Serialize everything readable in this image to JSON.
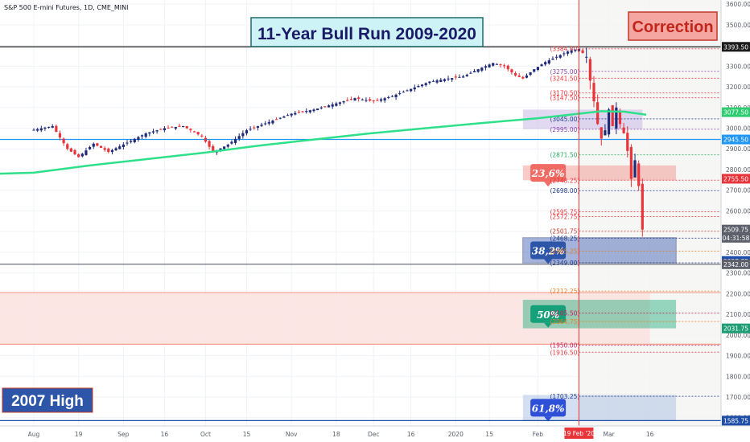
{
  "chart_data": {
    "type": "candlestick",
    "source_label": "S&P 500 E-mini Futures, 1D, CME_MINI",
    "title": "11-Year Bull Run 2009-2020",
    "correction_label": "Correction",
    "high_2007_label": "2007 High",
    "crosshair_date_label": "19 Feb '20",
    "ylim": [
      1560,
      3620
    ],
    "y_ticks": [
      1600,
      1700,
      1800,
      1900,
      2000,
      2100,
      2200,
      2300,
      2400,
      2500,
      2600,
      2700,
      2800,
      2900,
      3000,
      3100,
      3200,
      3300,
      3400,
      3500,
      3600
    ],
    "y_tick_labels": [
      "1600.00",
      "1700.00",
      "1800.00",
      "1900.00",
      "2000.00",
      "2100.00",
      "2200.00",
      "2300.00",
      "2400.00",
      "2500.00",
      "2600.00",
      "2700.00",
      "2800.00",
      "2900.00",
      "3000.00",
      "3100.00",
      "3200.00",
      "3300.00",
      "3400.00",
      "3500.00",
      "3600.00"
    ],
    "x_ticks": [
      {
        "label": "Aug",
        "day": 0
      },
      {
        "label": "19",
        "day": 12
      },
      {
        "label": "Sep",
        "day": 24
      },
      {
        "label": "16",
        "day": 35
      },
      {
        "label": "Oct",
        "day": 46
      },
      {
        "label": "15",
        "day": 57
      },
      {
        "label": "Nov",
        "day": 69
      },
      {
        "label": "18",
        "day": 81
      },
      {
        "label": "Dec",
        "day": 91
      },
      {
        "label": "16",
        "day": 101
      },
      {
        "label": "2020",
        "day": 113
      },
      {
        "label": "15",
        "day": 122
      },
      {
        "label": "Feb",
        "day": 135
      },
      {
        "label": "19 Feb '20",
        "day": 146
      },
      {
        "label": "Mar",
        "day": 154
      },
      {
        "label": "16",
        "day": 165
      }
    ],
    "price_tags": [
      {
        "label": "3393.50",
        "value": 3393.5,
        "color": "#1a1a1a"
      },
      {
        "label": "3077.50",
        "value": 3077.5,
        "color": "#2ecc71"
      },
      {
        "label": "2945.50",
        "value": 2945.5,
        "color": "#2196f3"
      },
      {
        "label": "2755.50",
        "value": 2755.5,
        "color": "#e8353b"
      },
      {
        "label": "2509.75",
        "value": 2509.75,
        "color": "#5d606b"
      },
      {
        "label": "04:31:58",
        "value": 2470,
        "color": "#5d606b"
      },
      {
        "label": "2357.75",
        "value": 2357.75,
        "color": "#1e4ea8"
      },
      {
        "label": "2342.00",
        "value": 2342,
        "color": "#5d606b"
      },
      {
        "label": "2031.75",
        "value": 2031.75,
        "color": "#1f9d75"
      },
      {
        "label": "1585.75",
        "value": 1585.75,
        "color": "#1e4ea8"
      }
    ],
    "level_lines": [
      {
        "value": 3393.5,
        "color": "#1a1a1a",
        "style": "solid"
      },
      {
        "value": 2945.5,
        "color": "#2196f3",
        "style": "solid"
      },
      {
        "value": 2342,
        "color": "#5d606b",
        "style": "solid"
      },
      {
        "value": 1585.75,
        "color": "#1e4ea8",
        "style": "solid"
      },
      {
        "value": 2205,
        "color": "#f4a090",
        "style": "solid"
      },
      {
        "value": 1955,
        "color": "#f4a090",
        "style": "solid"
      }
    ],
    "fib_labels": [
      {
        "label": "(3384.00)",
        "value": 3384,
        "color": "#e8353b"
      },
      {
        "label": "(3275.00)",
        "value": 3275,
        "color": "#8e44ad"
      },
      {
        "label": "(3241.50)",
        "value": 3241.5,
        "color": "#e8353b"
      },
      {
        "label": "(3170.50)",
        "value": 3170.5,
        "color": "#e8353b"
      },
      {
        "label": "(3147.50)",
        "value": 3147.5,
        "color": "#e8353b"
      },
      {
        "label": "(3045.00)",
        "value": 3045,
        "color": "#1e3a8a"
      },
      {
        "label": "(2995.00)",
        "value": 2995,
        "color": "#8e44ad"
      },
      {
        "label": "(2871.50)",
        "value": 2871.5,
        "color": "#27ae60"
      },
      {
        "label": "(2748.25)",
        "value": 2748.25,
        "color": "#e8353b"
      },
      {
        "label": "(2698.00)",
        "value": 2698,
        "color": "#1e3a8a"
      },
      {
        "label": "(2595.75)",
        "value": 2595.75,
        "color": "#e8353b"
      },
      {
        "label": "(2572.75)",
        "value": 2572.75,
        "color": "#e8353b"
      },
      {
        "label": "(2501.75)",
        "value": 2501.75,
        "color": "#c0392b"
      },
      {
        "label": "(2468.25)",
        "value": 2468.25,
        "color": "#1e3a8a"
      },
      {
        "label": "(2405.25)",
        "value": 2405.25,
        "color": "#e67e22"
      },
      {
        "label": "(2349.00)",
        "value": 2349,
        "color": "#1e3a8a"
      },
      {
        "label": "(2212.25)",
        "value": 2212.25,
        "color": "#e67e22"
      },
      {
        "label": "(2105.50)",
        "value": 2105.5,
        "color": "#c2185b"
      },
      {
        "label": "(2064.75)",
        "value": 2064.75,
        "color": "#e67e22"
      },
      {
        "label": "(1950.00)",
        "value": 1950,
        "color": "#c2185b"
      },
      {
        "label": "(1916.50)",
        "value": 1916.5,
        "color": "#e8353b"
      },
      {
        "label": "(1703.25)",
        "value": 1703.25,
        "color": "#1e3a8a"
      }
    ],
    "fib_zones": [
      {
        "label": "23,6%",
        "from": 2748,
        "to": 2820,
        "color": "#f28b82",
        "tag_color": "#ef6b63"
      },
      {
        "label": "38,2%",
        "from": 2349,
        "to": 2470,
        "color": "#3458b0",
        "tag_color": "#2d55a8"
      },
      {
        "label": "50%",
        "from": 2032,
        "to": 2170,
        "color": "#1faa7a",
        "tag_color": "#15a07a"
      },
      {
        "label": "61,8%",
        "from": 1586,
        "to": 1710,
        "color": "#9fb8e0",
        "tag_color": "#2e4fd8"
      }
    ],
    "ema": [
      {
        "day": 0,
        "value": 2785
      },
      {
        "day": 15,
        "value": 2820
      },
      {
        "day": 30,
        "value": 2850
      },
      {
        "day": 45,
        "value": 2880
      },
      {
        "day": 60,
        "value": 2915
      },
      {
        "day": 75,
        "value": 2945
      },
      {
        "day": 90,
        "value": 2975
      },
      {
        "day": 105,
        "value": 3000
      },
      {
        "day": 120,
        "value": 3025
      },
      {
        "day": 135,
        "value": 3048
      },
      {
        "day": 145,
        "value": 3068
      },
      {
        "day": 152,
        "value": 3082
      },
      {
        "day": 158,
        "value": 3080
      },
      {
        "day": 164,
        "value": 3065
      }
    ],
    "close_anchors": [
      {
        "day": 0,
        "value": 2992
      },
      {
        "day": 5,
        "value": 3010
      },
      {
        "day": 9,
        "value": 2900
      },
      {
        "day": 12,
        "value": 2860
      },
      {
        "day": 16,
        "value": 2925
      },
      {
        "day": 20,
        "value": 2885
      },
      {
        "day": 25,
        "value": 2930
      },
      {
        "day": 30,
        "value": 2975
      },
      {
        "day": 35,
        "value": 3000
      },
      {
        "day": 40,
        "value": 3010
      },
      {
        "day": 45,
        "value": 2960
      },
      {
        "day": 48,
        "value": 2885
      },
      {
        "day": 52,
        "value": 2920
      },
      {
        "day": 57,
        "value": 2990
      },
      {
        "day": 63,
        "value": 3030
      },
      {
        "day": 69,
        "value": 3070
      },
      {
        "day": 75,
        "value": 3090
      },
      {
        "day": 81,
        "value": 3120
      },
      {
        "day": 86,
        "value": 3145
      },
      {
        "day": 91,
        "value": 3130
      },
      {
        "day": 96,
        "value": 3155
      },
      {
        "day": 101,
        "value": 3190
      },
      {
        "day": 106,
        "value": 3225
      },
      {
        "day": 111,
        "value": 3240
      },
      {
        "day": 115,
        "value": 3250
      },
      {
        "day": 119,
        "value": 3285
      },
      {
        "day": 123,
        "value": 3315
      },
      {
        "day": 126,
        "value": 3300
      },
      {
        "day": 129,
        "value": 3255
      },
      {
        "day": 131,
        "value": 3240
      },
      {
        "day": 134,
        "value": 3285
      },
      {
        "day": 137,
        "value": 3320
      },
      {
        "day": 140,
        "value": 3345
      },
      {
        "day": 143,
        "value": 3370
      },
      {
        "day": 146,
        "value": 3383
      },
      {
        "day": 148,
        "value": 3345
      },
      {
        "day": 149,
        "value": 3230
      },
      {
        "day": 150,
        "value": 3130
      },
      {
        "day": 151,
        "value": 3020
      },
      {
        "day": 152,
        "value": 2950
      },
      {
        "day": 153,
        "value": 2990
      },
      {
        "day": 154,
        "value": 3090
      },
      {
        "day": 155,
        "value": 3010
      },
      {
        "day": 156,
        "value": 3100
      },
      {
        "day": 157,
        "value": 3020
      },
      {
        "day": 158,
        "value": 2975
      },
      {
        "day": 159,
        "value": 2890
      },
      {
        "day": 160,
        "value": 2755
      },
      {
        "day": 161,
        "value": 2845
      },
      {
        "day": 162,
        "value": 2720
      },
      {
        "day": 163,
        "value": 2509.75
      }
    ]
  }
}
